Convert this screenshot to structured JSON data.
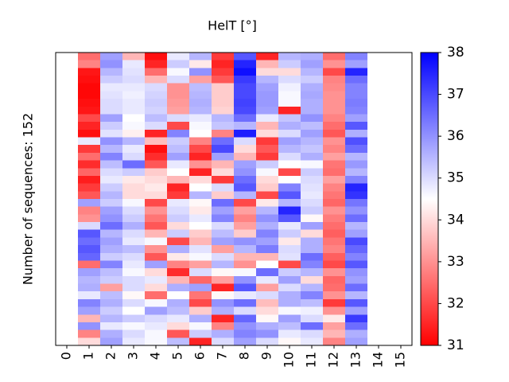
{
  "chart_data": {
    "type": "heatmap",
    "title": "HelT [°]",
    "ylabel": "Number of sequences: 152",
    "x": [
      1,
      2,
      3,
      4,
      5,
      6,
      7,
      8,
      9,
      10,
      11,
      12,
      13
    ],
    "xlim": [
      -0.5,
      15.5
    ],
    "xticks": [
      0,
      1,
      2,
      3,
      4,
      5,
      6,
      7,
      8,
      9,
      10,
      11,
      12,
      13,
      14,
      15
    ],
    "clim": [
      31,
      38
    ],
    "colorbar_ticks": [
      31,
      32,
      33,
      34,
      35,
      36,
      37,
      38
    ],
    "low_color": "#ff0000",
    "mid_color": "#ffffff",
    "high_color": "#0000ff",
    "z": [
      [
        32.5,
        35.8,
        33.5,
        31.2,
        34.8,
        35.5,
        31.8,
        36.8,
        31.5,
        35.5,
        35.6,
        32.5,
        36.2
      ],
      [
        32.8,
        36.0,
        34.8,
        31.5,
        35.2,
        34.2,
        31.5,
        37.5,
        33.5,
        35.2,
        35.8,
        33.0,
        35.8
      ],
      [
        31.3,
        35.5,
        34.9,
        32.5,
        34.6,
        36.0,
        31.8,
        37.8,
        34.0,
        34.0,
        35.5,
        32.0,
        37.5
      ],
      [
        31.2,
        35.2,
        35.0,
        33.5,
        35.0,
        33.2,
        32.2,
        37.2,
        35.5,
        35.0,
        35.2,
        32.8,
        36.5
      ],
      [
        31.1,
        34.8,
        34.8,
        35.0,
        33.0,
        35.4,
        33.8,
        37.0,
        35.8,
        34.7,
        35.6,
        32.9,
        36.2
      ],
      [
        31.1,
        34.9,
        34.7,
        35.1,
        33.0,
        35.5,
        33.8,
        37.0,
        35.9,
        34.6,
        35.7,
        33.0,
        36.2
      ],
      [
        31.2,
        35.0,
        34.8,
        35.2,
        33.1,
        35.6,
        33.8,
        37.1,
        35.9,
        34.6,
        35.6,
        33.0,
        36.3
      ],
      [
        31.3,
        35.0,
        34.8,
        35.1,
        33.2,
        35.5,
        33.9,
        37.0,
        35.8,
        31.5,
        35.6,
        33.0,
        36.2
      ],
      [
        32.0,
        35.8,
        34.5,
        35.4,
        35.0,
        34.8,
        35.5,
        36.5,
        34.8,
        35.3,
        36.0,
        32.8,
        35.8
      ],
      [
        31.5,
        35.2,
        34.6,
        35.0,
        32.0,
        34.6,
        35.3,
        35.5,
        33.5,
        35.6,
        35.4,
        32.5,
        36.8
      ],
      [
        31.2,
        34.9,
        34.3,
        31.5,
        36.2,
        34.5,
        32.8,
        37.6,
        34.0,
        35.0,
        35.8,
        32.2,
        35.6
      ],
      [
        34.8,
        36.0,
        35.5,
        33.6,
        35.2,
        32.8,
        36.5,
        35.0,
        31.8,
        35.8,
        35.5,
        33.0,
        36.9
      ],
      [
        31.8,
        35.5,
        34.8,
        31.2,
        35.4,
        32.0,
        37.0,
        34.0,
        32.2,
        35.5,
        35.3,
        32.8,
        36.5
      ],
      [
        32.5,
        36.2,
        35.0,
        31.6,
        35.8,
        31.5,
        35.8,
        33.5,
        31.8,
        35.0,
        35.6,
        33.2,
        35.5
      ],
      [
        31.6,
        35.4,
        36.5,
        32.2,
        34.8,
        33.0,
        33.5,
        35.8,
        35.2,
        34.5,
        34.6,
        32.6,
        35.9
      ],
      [
        32.4,
        35.0,
        35.2,
        33.8,
        34.5,
        31.5,
        34.0,
        36.0,
        34.6,
        32.0,
        35.2,
        32.5,
        35.5
      ],
      [
        31.4,
        34.8,
        34.2,
        34.0,
        33.5,
        34.0,
        31.8,
        36.5,
        34.0,
        34.5,
        35.0,
        33.2,
        36.2
      ],
      [
        31.8,
        35.2,
        34.0,
        34.2,
        31.5,
        34.5,
        35.0,
        36.8,
        33.8,
        36.2,
        34.9,
        32.8,
        37.5
      ],
      [
        32.2,
        35.5,
        34.0,
        34.0,
        31.8,
        35.5,
        33.8,
        35.5,
        32.0,
        36.8,
        34.8,
        32.6,
        37.3
      ],
      [
        35.8,
        35.2,
        34.6,
        32.0,
        34.8,
        34.4,
        36.5,
        32.0,
        34.2,
        35.5,
        35.0,
        32.4,
        36.4
      ],
      [
        32.8,
        35.8,
        35.0,
        33.0,
        35.0,
        34.2,
        35.8,
        33.2,
        35.5,
        37.5,
        35.2,
        33.0,
        36.0
      ],
      [
        33.0,
        36.0,
        35.2,
        32.6,
        35.2,
        34.8,
        36.2,
        32.8,
        36.0,
        36.8,
        34.4,
        32.7,
        36.5
      ],
      [
        35.0,
        36.5,
        35.6,
        32.2,
        34.0,
        34.5,
        35.0,
        33.2,
        35.6,
        34.8,
        35.8,
        32.5,
        35.5
      ],
      [
        36.8,
        35.5,
        35.0,
        33.5,
        35.2,
        33.8,
        35.4,
        33.8,
        36.2,
        35.2,
        34.0,
        32.3,
        35.8
      ],
      [
        36.5,
        35.8,
        34.8,
        34.6,
        32.0,
        33.5,
        35.8,
        36.0,
        35.8,
        34.2,
        35.6,
        32.6,
        37.0
      ],
      [
        36.8,
        35.6,
        35.4,
        33.0,
        35.6,
        34.9,
        33.2,
        35.5,
        36.3,
        35.0,
        35.6,
        32.8,
        36.6
      ],
      [
        36.6,
        35.2,
        35.0,
        32.2,
        34.2,
        34.6,
        35.0,
        33.5,
        33.5,
        34.9,
        36.5,
        32.3,
        36.2
      ],
      [
        32.5,
        36.2,
        34.8,
        35.8,
        32.8,
        33.2,
        35.5,
        33.0,
        34.5,
        32.0,
        36.2,
        32.0,
        36.8
      ],
      [
        35.8,
        35.4,
        34.6,
        34.0,
        31.6,
        35.0,
        34.4,
        34.6,
        36.5,
        35.2,
        35.5,
        33.0,
        36.0
      ],
      [
        35.5,
        35.2,
        35.0,
        34.8,
        33.5,
        32.4,
        33.2,
        36.0,
        34.8,
        35.8,
        34.0,
        32.4,
        35.8
      ],
      [
        35.6,
        33.2,
        35.0,
        34.0,
        35.6,
        35.8,
        31.5,
        36.8,
        33.2,
        35.0,
        35.5,
        32.5,
        36.5
      ],
      [
        34.8,
        35.4,
        34.4,
        32.5,
        34.5,
        32.6,
        34.4,
        34.8,
        35.0,
        35.6,
        36.2,
        33.0,
        35.5
      ],
      [
        36.2,
        35.6,
        35.0,
        34.6,
        35.6,
        32.0,
        36.0,
        36.5,
        33.6,
        35.6,
        35.4,
        31.8,
        36.8
      ],
      [
        35.8,
        35.2,
        34.5,
        35.8,
        35.4,
        33.8,
        35.6,
        35.0,
        34.0,
        34.6,
        34.7,
        33.0,
        35.8
      ],
      [
        33.5,
        35.5,
        35.2,
        35.0,
        34.8,
        35.6,
        31.5,
        36.6,
        34.4,
        35.8,
        35.0,
        34.2,
        37.2
      ],
      [
        36.0,
        34.8,
        34.6,
        34.8,
        34.0,
        34.6,
        32.8,
        36.0,
        35.6,
        35.4,
        36.5,
        33.2,
        36.5
      ],
      [
        32.8,
        35.6,
        35.0,
        34.6,
        32.2,
        35.2,
        35.6,
        36.2,
        36.0,
        34.8,
        35.0,
        33.5,
        35.6
      ],
      [
        34.0,
        35.8,
        34.8,
        34.6,
        35.4,
        31.5,
        35.0,
        35.8,
        35.0,
        34.4,
        34.8,
        32.8,
        35.8
      ]
    ]
  }
}
